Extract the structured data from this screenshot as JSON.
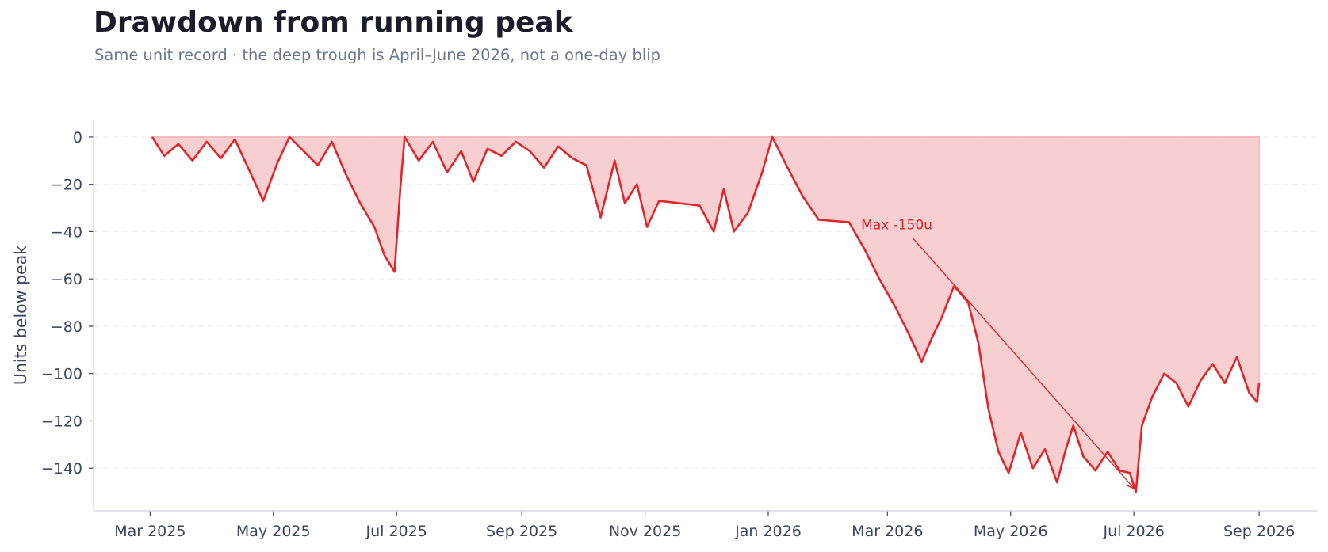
{
  "title": "Drawdown from running peak",
  "subtitle": "Same unit record · the deep trough is April–June 2026, not a one-day blip",
  "colors": {
    "line": "#e0262b",
    "fill": "#f7cfd0",
    "axis": "#d3d8e2",
    "grid": "#eceef2",
    "text": "#3a4660"
  },
  "chart_data": {
    "type": "area",
    "title": "Drawdown from running peak",
    "subtitle": "Same unit record · the deep trough is April–June 2026, not a one-day blip",
    "xlabel": "",
    "ylabel": "Units below peak",
    "x_type": "date",
    "xlim": [
      "2025-02-01",
      "2026-09-30"
    ],
    "ylim": [
      -158,
      7
    ],
    "grid": "horizontal dashed",
    "y_ticks": [
      0,
      -20,
      -40,
      -60,
      -80,
      -100,
      -120,
      -140
    ],
    "x_ticks": [
      {
        "date": "2025-03-01",
        "label": "Mar 2025"
      },
      {
        "date": "2025-05-01",
        "label": "May 2025"
      },
      {
        "date": "2025-07-01",
        "label": "Jul 2025"
      },
      {
        "date": "2025-09-01",
        "label": "Sep 2025"
      },
      {
        "date": "2025-11-01",
        "label": "Nov 2025"
      },
      {
        "date": "2026-01-01",
        "label": "Jan 2026"
      },
      {
        "date": "2026-03-01",
        "label": "Mar 2026"
      },
      {
        "date": "2026-05-01",
        "label": "May 2026"
      },
      {
        "date": "2026-07-01",
        "label": "Jul 2026"
      },
      {
        "date": "2026-09-01",
        "label": "Sep 2026"
      }
    ],
    "series": [
      {
        "points": [
          [
            "2025-03-02",
            0
          ],
          [
            "2025-03-08",
            -8
          ],
          [
            "2025-03-15",
            -3
          ],
          [
            "2025-03-22",
            -10
          ],
          [
            "2025-03-29",
            -2
          ],
          [
            "2025-04-05",
            -9
          ],
          [
            "2025-04-12",
            -1
          ],
          [
            "2025-04-19",
            -14
          ],
          [
            "2025-04-26",
            -27
          ],
          [
            "2025-05-03",
            -11
          ],
          [
            "2025-05-09",
            0
          ],
          [
            "2025-05-16",
            -6
          ],
          [
            "2025-05-23",
            -12
          ],
          [
            "2025-05-30",
            -2
          ],
          [
            "2025-06-06",
            -16
          ],
          [
            "2025-06-13",
            -28
          ],
          [
            "2025-06-20",
            -38
          ],
          [
            "2025-06-25",
            -50
          ],
          [
            "2025-06-30",
            -57
          ],
          [
            "2025-07-03",
            -20
          ],
          [
            "2025-07-05",
            0
          ],
          [
            "2025-07-12",
            -10
          ],
          [
            "2025-07-19",
            -2
          ],
          [
            "2025-07-26",
            -15
          ],
          [
            "2025-08-02",
            -6
          ],
          [
            "2025-08-08",
            -19
          ],
          [
            "2025-08-15",
            -5
          ],
          [
            "2025-08-22",
            -8
          ],
          [
            "2025-08-29",
            -2
          ],
          [
            "2025-09-05",
            -6
          ],
          [
            "2025-09-12",
            -13
          ],
          [
            "2025-09-19",
            -4
          ],
          [
            "2025-09-26",
            -9
          ],
          [
            "2025-10-03",
            -12
          ],
          [
            "2025-10-10",
            -34
          ],
          [
            "2025-10-17",
            -10
          ],
          [
            "2025-10-22",
            -28
          ],
          [
            "2025-10-28",
            -20
          ],
          [
            "2025-11-02",
            -38
          ],
          [
            "2025-11-08",
            -27
          ],
          [
            "2025-11-28",
            -29
          ],
          [
            "2025-12-05",
            -40
          ],
          [
            "2025-12-10",
            -22
          ],
          [
            "2025-12-15",
            -40
          ],
          [
            "2025-12-22",
            -32
          ],
          [
            "2025-12-29",
            -15
          ],
          [
            "2026-01-03",
            0
          ],
          [
            "2026-01-10",
            -12
          ],
          [
            "2026-01-18",
            -25
          ],
          [
            "2026-01-26",
            -35
          ],
          [
            "2026-02-10",
            -36
          ],
          [
            "2026-02-18",
            -48
          ],
          [
            "2026-02-25",
            -60
          ],
          [
            "2026-03-05",
            -72
          ],
          [
            "2026-03-12",
            -84
          ],
          [
            "2026-03-18",
            -95
          ],
          [
            "2026-03-23",
            -85
          ],
          [
            "2026-03-28",
            -76
          ],
          [
            "2026-04-03",
            -63
          ],
          [
            "2026-04-10",
            -70
          ],
          [
            "2026-04-15",
            -87
          ],
          [
            "2026-04-20",
            -115
          ],
          [
            "2026-04-25",
            -133
          ],
          [
            "2026-04-30",
            -142
          ],
          [
            "2026-05-06",
            -125
          ],
          [
            "2026-05-12",
            -140
          ],
          [
            "2026-05-18",
            -132
          ],
          [
            "2026-05-24",
            -146
          ],
          [
            "2026-05-28",
            -133
          ],
          [
            "2026-06-01",
            -122
          ],
          [
            "2026-06-06",
            -135
          ],
          [
            "2026-06-12",
            -141
          ],
          [
            "2026-06-18",
            -133
          ],
          [
            "2026-06-24",
            -141
          ],
          [
            "2026-06-29",
            -142
          ],
          [
            "2026-07-02",
            -150
          ],
          [
            "2026-07-05",
            -122
          ],
          [
            "2026-07-10",
            -110
          ],
          [
            "2026-07-16",
            -100
          ],
          [
            "2026-07-22",
            -104
          ],
          [
            "2026-07-28",
            -114
          ],
          [
            "2026-08-03",
            -103
          ],
          [
            "2026-08-09",
            -96
          ],
          [
            "2026-08-15",
            -104
          ],
          [
            "2026-08-21",
            -93
          ],
          [
            "2026-08-27",
            -108
          ],
          [
            "2026-08-31",
            -112
          ],
          [
            "2026-09-01",
            -104
          ]
        ]
      }
    ],
    "annotations": [
      {
        "text": "Max -150u",
        "point": [
          "2026-07-02",
          -150
        ]
      }
    ]
  }
}
